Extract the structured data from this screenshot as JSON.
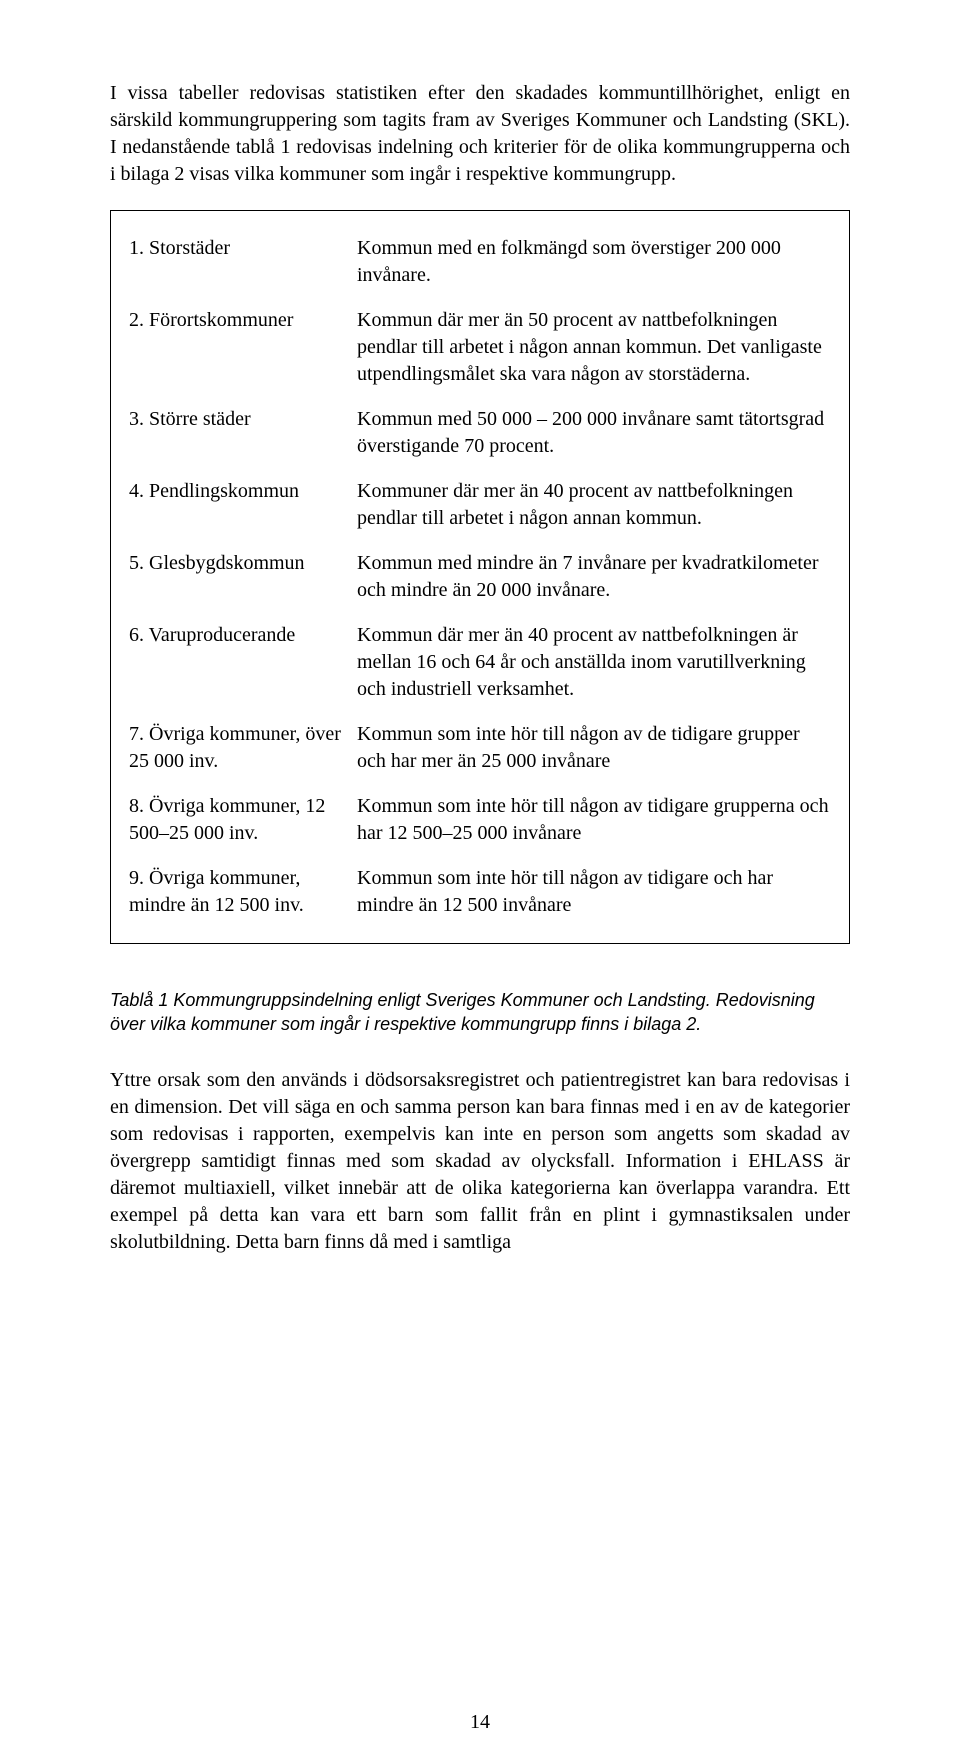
{
  "intro": "I vissa tabeller redovisas statistiken efter den skadades kommuntillhörighet, enligt en särskild kommungruppering som tagits fram av Sveriges Kommuner och Landsting (SKL). I nedanstående tablå 1 redovisas indelning och kriterier för de olika kommungrupperna och i bilaga 2 visas vilka kommuner som ingår i respektive kommungrupp.",
  "defs": [
    {
      "label": "1. Storstäder",
      "desc": "Kommun med en folkmängd som överstiger 200 000 invånare."
    },
    {
      "label": "2. Förortskommuner",
      "desc": "Kommun där mer än 50 procent av nattbefolkningen pendlar till arbetet i någon annan kommun. Det vanligaste utpendlingsmålet ska vara någon av storstäderna."
    },
    {
      "label": "3. Större städer",
      "desc": "Kommun med 50 000 – 200 000 invånare samt tätortsgrad överstigande 70 procent."
    },
    {
      "label": "4. Pendlingskommun",
      "desc": "Kommuner där mer än 40 procent av nattbefolkningen pendlar till arbetet i någon annan kommun."
    },
    {
      "label": "5. Glesbygdskommun",
      "desc": "Kommun med mindre än 7 invånare per kvadratkilometer och mindre än 20 000 invånare."
    },
    {
      "label": "6. Varuproducerande",
      "desc": "Kommun där mer än 40 procent av nattbefolkningen är mellan 16 och 64 år och anställda inom varutillverkning och industriell verksamhet."
    },
    {
      "label": "7. Övriga kommuner, över 25 000 inv.",
      "desc": "Kommun som inte hör till någon av de tidigare grupper och har mer än 25 000 invånare"
    },
    {
      "label": "8. Övriga kommuner, 12 500–25 000 inv.",
      "desc": "Kommun som inte hör till någon av tidigare grupperna och har 12 500–25 000 invånare"
    },
    {
      "label": "9. Övriga kommuner, mindre än 12 500 inv.",
      "desc": "Kommun som inte hör till någon av tidigare och har mindre än 12 500 invånare"
    }
  ],
  "caption": "Tablå 1 Kommungruppsindelning enligt Sveriges Kommuner och Landsting. Redovisning över vilka kommuner som ingår i respektive kommungrupp finns i bilaga 2.",
  "body": "Yttre orsak som den används i dödsorsaksregistret och patientregistret kan bara redovisas i en dimension. Det vill säga en och samma person kan bara finnas med i en av de kategorier som redovisas i rapporten, exempelvis kan inte en person som angetts som skadad av övergrepp samtidigt finnas med som skadad av olycksfall. Information i EHLASS är däremot multiaxiell, vilket innebär att de olika kategorierna kan överlappa varandra. Ett exempel på detta kan vara ett barn som fallit från en plint i gymnastiksalen under skolutbildning. Detta barn finns då med i samtliga",
  "pageNumber": "14"
}
